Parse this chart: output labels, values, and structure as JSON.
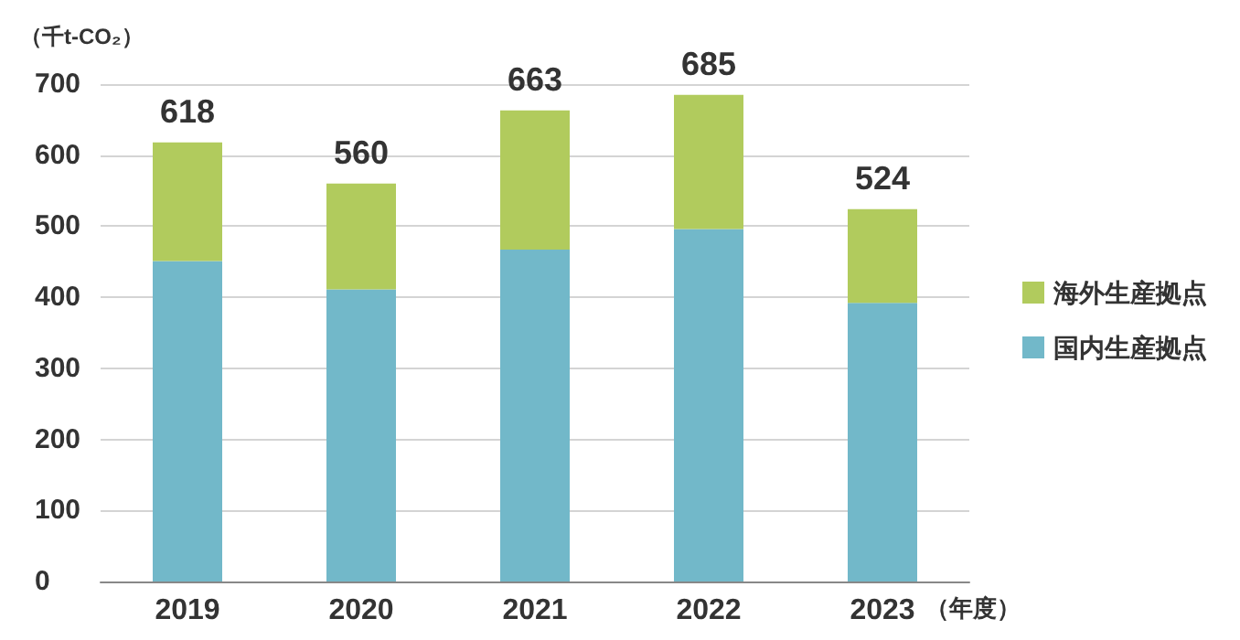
{
  "chart_data": {
    "type": "bar",
    "stacked": true,
    "ylabel": "（千t-CO₂）",
    "xlabel": "（年度）",
    "categories": [
      "2019",
      "2020",
      "2021",
      "2022",
      "2023"
    ],
    "series": [
      {
        "name": "国内生産拠点",
        "color": "#72b8c9",
        "values": [
          451,
          411,
          467,
          496,
          392
        ]
      },
      {
        "name": "海外生産拠点",
        "color": "#b1cb5d",
        "values": [
          167,
          149,
          196,
          189,
          132
        ]
      }
    ],
    "totals": [
      "618",
      "560",
      "663",
      "685",
      "524"
    ],
    "ylim": [
      0,
      700
    ],
    "yticks": [
      0,
      100,
      200,
      300,
      400,
      500,
      600,
      700
    ],
    "grid": "y",
    "legend": "right"
  }
}
